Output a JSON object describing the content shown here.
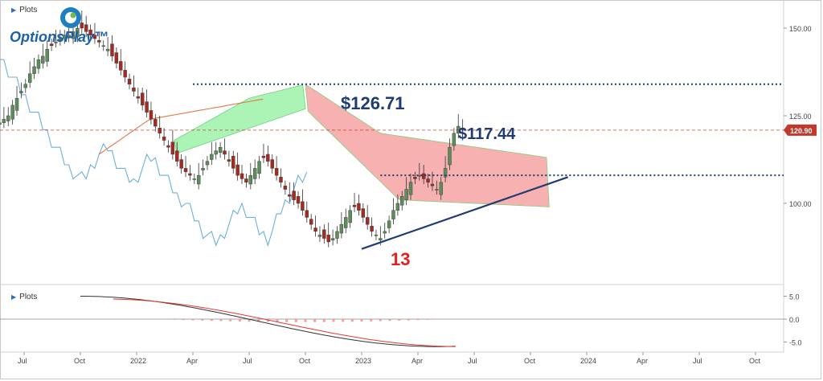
{
  "brand": {
    "name": "OptionsPlay",
    "trademark": "™"
  },
  "panels": {
    "price_label": "Plots",
    "osc_label": "Plots"
  },
  "colors": {
    "candle_up": "#5e8c5b",
    "candle_down": "#a52a22",
    "cloud_bull": "#9df2a8",
    "cloud_bear": "#f6a3a3",
    "lagging": "#6ab0de",
    "base_line": "#e07a4a",
    "support": "#1f3c72",
    "level": "#1f3c72",
    "price_line": "#c0392b",
    "annotation_blue": "#1f3c72",
    "annotation_red": "#e3201b",
    "macd": "#333333",
    "signal": "#e53935"
  },
  "chart_data": [
    {
      "type": "candlestick",
      "ylim": [
        82,
        158
      ],
      "y_ticks": [
        "150.00",
        "125.00",
        "100.00"
      ],
      "y_tick_values": [
        150,
        125,
        100
      ],
      "x_ticks": [
        "Jul",
        "Oct",
        "2022",
        "Apr",
        "Jul",
        "Oct",
        "2023",
        "Apr",
        "Jul",
        "Oct",
        "2024",
        "Apr",
        "Jul",
        "Oct"
      ],
      "x_tick_dates": [
        "2021-07",
        "2021-10",
        "2022-01",
        "2022-04",
        "2022-07",
        "2022-10",
        "2023-01",
        "2023-04",
        "2023-07",
        "2023-10",
        "2024-01",
        "2024-04",
        "2024-07",
        "2024-10"
      ],
      "x_year_labels": [
        "2022",
        "2023",
        "2024"
      ],
      "x_range": [
        "2021-05",
        "2024-12"
      ],
      "current_price": 120.9,
      "current_price_label": "120.90",
      "resistance_level": 134,
      "breakout_level": 108,
      "annotations": {
        "price_high": "$126.71",
        "price_mid": "$117.44",
        "count": "13"
      },
      "support_trendline": [
        {
          "date": "2023-01",
          "value": 87
        },
        {
          "date": "2023-12",
          "value": 107.5
        }
      ],
      "weekly_close": [
        120,
        121,
        122,
        123,
        124,
        125,
        128,
        130,
        132,
        134,
        137,
        139,
        141,
        142,
        144,
        145,
        146,
        147,
        148,
        148,
        149,
        150,
        150,
        149,
        148,
        147,
        146,
        145,
        144,
        142,
        140,
        138,
        136,
        134,
        132,
        130,
        128,
        126,
        124,
        122,
        120,
        118,
        116,
        114,
        112,
        110,
        109,
        108,
        107,
        108,
        110,
        112,
        114,
        115,
        116,
        114,
        112,
        110,
        108,
        107,
        106,
        108,
        110,
        112,
        113,
        112,
        110,
        108,
        106,
        104,
        102,
        101,
        100,
        98,
        96,
        94,
        92,
        91,
        90,
        89,
        90,
        92,
        94,
        96,
        98,
        99,
        98,
        96,
        94,
        92,
        91,
        90,
        92,
        95,
        98,
        100,
        102,
        104,
        106,
        107,
        108,
        107,
        106,
        105,
        104,
        106,
        110,
        116,
        120,
        122,
        121
      ]
    },
    {
      "type": "line",
      "ylim": [
        -7,
        7
      ],
      "y_ticks": [
        "5.0",
        "0.0",
        "-5.0"
      ],
      "y_tick_values": [
        5,
        0,
        -5
      ],
      "series": [
        {
          "name": "",
          "role": "macd"
        },
        {
          "name": "",
          "role": "signal"
        },
        {
          "name": "",
          "role": "histogram"
        }
      ]
    }
  ]
}
